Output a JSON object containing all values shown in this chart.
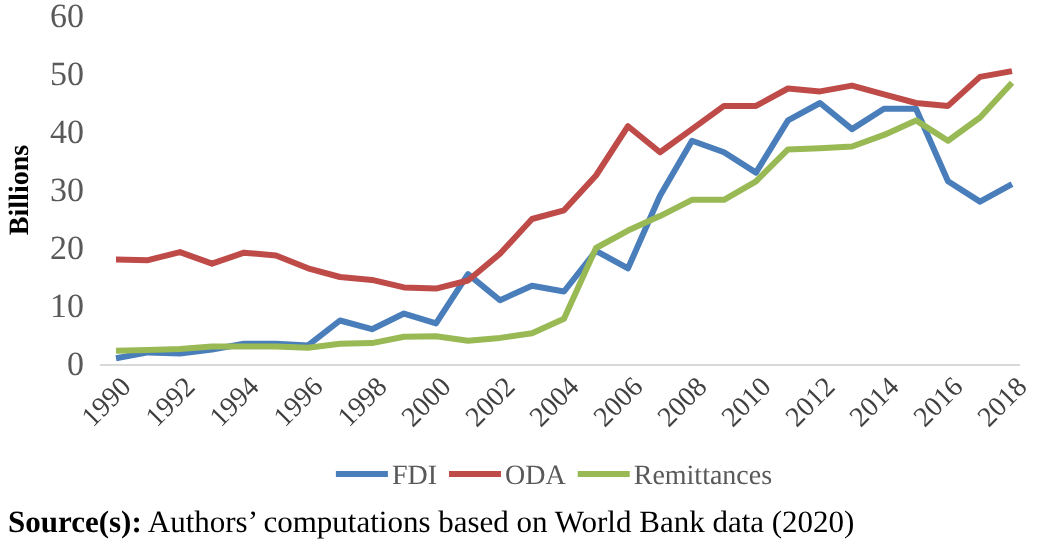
{
  "chart_data": {
    "type": "line",
    "ylabel": "Billions",
    "categories": [
      "1990",
      null,
      "1992",
      null,
      "1994",
      null,
      "1996",
      null,
      "1998",
      null,
      "2000",
      null,
      "2002",
      null,
      "2004",
      null,
      "2006",
      null,
      "2008",
      null,
      "2010",
      null,
      "2012",
      null,
      "2014",
      null,
      "2016",
      null,
      "2018"
    ],
    "series": [
      {
        "name": "FDI",
        "color": "#4a7ebb",
        "values": [
          1.0,
          2,
          1.8,
          2.5,
          3.5,
          3.5,
          3.2,
          7.5,
          6,
          8.7,
          7,
          15.5,
          11,
          13.5,
          12.5,
          19.5,
          16.5,
          29,
          38.5,
          36.5,
          33,
          42,
          45,
          40.5,
          44,
          44,
          31.5,
          28,
          31
        ]
      },
      {
        "name": "ODA",
        "color": "#be4b48",
        "values": [
          18,
          17.9,
          19.3,
          17.3,
          19.2,
          18.7,
          16.5,
          15,
          14.5,
          13.2,
          13,
          14.4,
          19,
          25,
          26.5,
          32.5,
          41,
          36.5,
          40.5,
          44.5,
          44.5,
          47.5,
          47,
          48,
          46.5,
          45,
          44.5,
          49.5,
          50.5
        ]
      },
      {
        "name": "Remittances",
        "color": "#98b954",
        "values": [
          2.3,
          2.4,
          2.6,
          3,
          3,
          3,
          2.8,
          3.5,
          3.6,
          4.7,
          4.8,
          4,
          4.5,
          5.3,
          7.8,
          20,
          23,
          25.5,
          28.3,
          28.3,
          31.5,
          37,
          37.2,
          37.5,
          39.5,
          42,
          38.5,
          42.5,
          48.5
        ]
      }
    ],
    "ylim": [
      0,
      60
    ],
    "yticks": [
      0,
      10,
      20,
      30,
      40,
      50,
      60
    ],
    "grid": false,
    "legend": "bottom",
    "line_style": "solid",
    "marker": "none",
    "annotations": [
      "Source(s): Authors’ computations based on World Bank data (2020)"
    ]
  }
}
